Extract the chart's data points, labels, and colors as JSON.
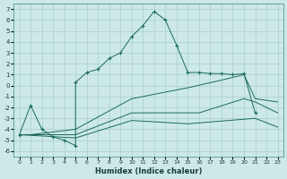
{
  "xlabel": "Humidex (Indice chaleur)",
  "bg_color": "#cce8e8",
  "grid_color": "#aacece",
  "line_color": "#1a6b5a",
  "xlim": [
    -0.5,
    23.5
  ],
  "ylim": [
    -6.5,
    7.5
  ],
  "xticks": [
    0,
    1,
    2,
    3,
    4,
    5,
    6,
    7,
    8,
    9,
    10,
    11,
    12,
    13,
    14,
    15,
    16,
    17,
    18,
    19,
    20,
    21,
    22,
    23
  ],
  "yticks": [
    -6,
    -5,
    -4,
    -3,
    -2,
    -1,
    0,
    1,
    2,
    3,
    4,
    5,
    6,
    7
  ],
  "s1_x": [
    0,
    1,
    2,
    3,
    4,
    5,
    5,
    6,
    7,
    8,
    9,
    10,
    11,
    12,
    13,
    14,
    15,
    16,
    17,
    18,
    19,
    20,
    21
  ],
  "s1_y": [
    -4.5,
    -1.8,
    -4.0,
    -4.7,
    -5.0,
    -5.5,
    0.3,
    1.2,
    1.5,
    2.5,
    3.0,
    4.5,
    5.5,
    6.8,
    6.0,
    3.7,
    1.2,
    1.2,
    1.1,
    1.1,
    1.0,
    1.1,
    -2.5
  ],
  "s2_x": [
    0,
    1,
    5,
    10,
    15,
    18,
    20,
    21,
    23
  ],
  "s2_y": [
    -4.5,
    -4.5,
    -4.0,
    -1.2,
    -0.2,
    0.5,
    1.0,
    -1.2,
    -1.5
  ],
  "s3_x": [
    0,
    5,
    10,
    16,
    20,
    21,
    23
  ],
  "s3_y": [
    -4.5,
    -4.5,
    -2.5,
    -2.5,
    -1.2,
    -1.5,
    -2.5
  ],
  "s4_x": [
    0,
    5,
    10,
    15,
    21,
    23
  ],
  "s4_y": [
    -4.5,
    -4.8,
    -3.2,
    -3.5,
    -3.0,
    -3.8
  ]
}
